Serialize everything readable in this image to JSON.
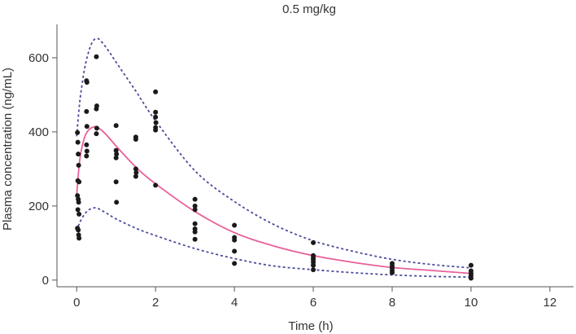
{
  "chart_data": {
    "type": "scatter",
    "title": "0.5 mg/kg",
    "xlabel": "Time (h)",
    "ylabel": "Plasma concentration (ng/mL)",
    "xlim": [
      -0.5,
      12.6
    ],
    "ylim": [
      -18,
      690
    ],
    "x_ticks": [
      0,
      2,
      4,
      6,
      8,
      10,
      12
    ],
    "y_ticks": [
      0,
      200,
      400,
      600
    ],
    "x_tick_labels": [
      "0",
      "2",
      "4",
      "6",
      "8",
      "10",
      "12"
    ],
    "y_tick_labels": [
      "0",
      "200",
      "400",
      "600"
    ],
    "colors": {
      "median": "#e8609a",
      "interval": "#4a4a9c",
      "points": "#1a1a1a",
      "axis": "#555555"
    },
    "observed": [
      {
        "x": 0.02,
        "y": 398
      },
      {
        "x": 0.03,
        "y": 372
      },
      {
        "x": 0.04,
        "y": 340
      },
      {
        "x": 0.05,
        "y": 310
      },
      {
        "x": 0.03,
        "y": 268
      },
      {
        "x": 0.06,
        "y": 265
      },
      {
        "x": 0.02,
        "y": 228
      },
      {
        "x": 0.04,
        "y": 218
      },
      {
        "x": 0.05,
        "y": 210
      },
      {
        "x": 0.03,
        "y": 190
      },
      {
        "x": 0.06,
        "y": 178
      },
      {
        "x": 0.02,
        "y": 140
      },
      {
        "x": 0.04,
        "y": 135
      },
      {
        "x": 0.05,
        "y": 122
      },
      {
        "x": 0.06,
        "y": 113
      },
      {
        "x": 0.25,
        "y": 538
      },
      {
        "x": 0.26,
        "y": 534
      },
      {
        "x": 0.25,
        "y": 455
      },
      {
        "x": 0.26,
        "y": 415
      },
      {
        "x": 0.25,
        "y": 365
      },
      {
        "x": 0.26,
        "y": 348
      },
      {
        "x": 0.25,
        "y": 335
      },
      {
        "x": 0.5,
        "y": 603
      },
      {
        "x": 0.51,
        "y": 470
      },
      {
        "x": 0.5,
        "y": 462
      },
      {
        "x": 0.51,
        "y": 410
      },
      {
        "x": 0.5,
        "y": 395
      },
      {
        "x": 1.0,
        "y": 417
      },
      {
        "x": 1.0,
        "y": 350
      },
      {
        "x": 1.01,
        "y": 340
      },
      {
        "x": 1.0,
        "y": 330
      },
      {
        "x": 1.0,
        "y": 265
      },
      {
        "x": 1.01,
        "y": 210
      },
      {
        "x": 1.5,
        "y": 386
      },
      {
        "x": 1.5,
        "y": 380
      },
      {
        "x": 1.5,
        "y": 300
      },
      {
        "x": 1.51,
        "y": 290
      },
      {
        "x": 1.5,
        "y": 280
      },
      {
        "x": 2.0,
        "y": 508
      },
      {
        "x": 2.0,
        "y": 453
      },
      {
        "x": 2.0,
        "y": 440
      },
      {
        "x": 2.01,
        "y": 425
      },
      {
        "x": 2.0,
        "y": 412
      },
      {
        "x": 2.0,
        "y": 405
      },
      {
        "x": 2.0,
        "y": 256
      },
      {
        "x": 3.0,
        "y": 218
      },
      {
        "x": 3.0,
        "y": 200
      },
      {
        "x": 3.0,
        "y": 190
      },
      {
        "x": 3.0,
        "y": 152
      },
      {
        "x": 3.0,
        "y": 138
      },
      {
        "x": 3.0,
        "y": 130
      },
      {
        "x": 3.0,
        "y": 110
      },
      {
        "x": 4.0,
        "y": 148
      },
      {
        "x": 4.0,
        "y": 115
      },
      {
        "x": 4.0,
        "y": 108
      },
      {
        "x": 4.0,
        "y": 78
      },
      {
        "x": 4.0,
        "y": 45
      },
      {
        "x": 6.0,
        "y": 101
      },
      {
        "x": 6.0,
        "y": 66
      },
      {
        "x": 6.0,
        "y": 60
      },
      {
        "x": 6.0,
        "y": 55
      },
      {
        "x": 6.0,
        "y": 48
      },
      {
        "x": 6.0,
        "y": 40
      },
      {
        "x": 6.0,
        "y": 28
      },
      {
        "x": 8.0,
        "y": 45
      },
      {
        "x": 8.0,
        "y": 38
      },
      {
        "x": 8.0,
        "y": 32
      },
      {
        "x": 8.0,
        "y": 25
      },
      {
        "x": 8.0,
        "y": 20
      },
      {
        "x": 10.0,
        "y": 40
      },
      {
        "x": 10.0,
        "y": 25
      },
      {
        "x": 10.0,
        "y": 18
      },
      {
        "x": 10.0,
        "y": 12
      },
      {
        "x": 10.0,
        "y": 5
      }
    ],
    "series": [
      {
        "name": "median",
        "x": [
          0,
          0.05,
          0.1,
          0.2,
          0.3,
          0.4,
          0.5,
          0.7,
          1.0,
          1.5,
          2.0,
          3.0,
          4.0,
          5.0,
          6.0,
          7.0,
          8.0,
          9.0,
          10.0
        ],
        "values": [
          230,
          295,
          340,
          385,
          405,
          412,
          413,
          398,
          362,
          305,
          260,
          185,
          128,
          92,
          66,
          48,
          34,
          26,
          18
        ]
      },
      {
        "name": "upper",
        "x": [
          0,
          0.05,
          0.1,
          0.2,
          0.3,
          0.4,
          0.5,
          0.6,
          0.8,
          1.0,
          1.5,
          2.0,
          3.0,
          4.0,
          5.0,
          6.0,
          7.0,
          8.0,
          9.0,
          10.0
        ],
        "values": [
          388,
          450,
          500,
          570,
          615,
          643,
          652,
          647,
          620,
          588,
          510,
          430,
          295,
          212,
          150,
          106,
          78,
          56,
          42,
          33
        ]
      },
      {
        "name": "lower",
        "x": [
          0,
          0.05,
          0.1,
          0.2,
          0.3,
          0.4,
          0.5,
          0.6,
          0.8,
          1.0,
          1.5,
          2.0,
          3.0,
          4.0,
          5.0,
          6.0,
          7.0,
          8.0,
          9.0,
          10.0
        ],
        "values": [
          133,
          148,
          160,
          178,
          189,
          194,
          195,
          190,
          178,
          165,
          140,
          120,
          85,
          58,
          38,
          28,
          20,
          14,
          10,
          8
        ]
      }
    ]
  }
}
